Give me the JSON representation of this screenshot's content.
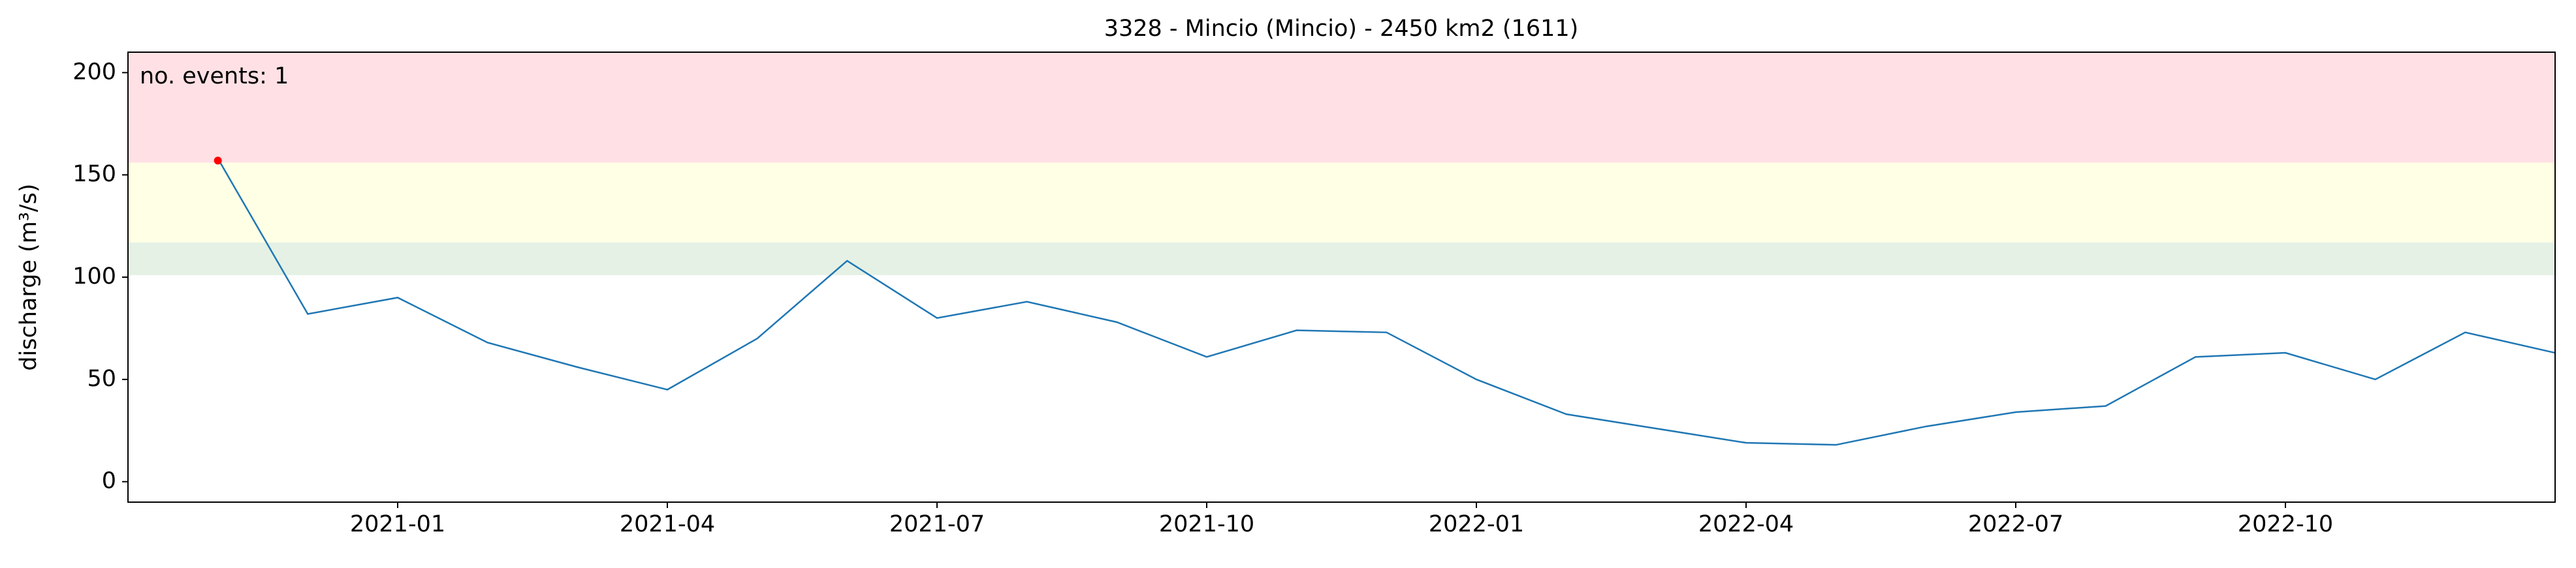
{
  "chart_data": {
    "type": "line",
    "title": "3328 - Mincio (Mincio) - 2450 km2 (1611)",
    "ylabel": "discharge (m³/s)",
    "annotation": "no. events: 1",
    "x": [
      "2020-11",
      "2020-12",
      "2021-01",
      "2021-02",
      "2021-03",
      "2021-04",
      "2021-05",
      "2021-06",
      "2021-07",
      "2021-08",
      "2021-09",
      "2021-10",
      "2021-11",
      "2021-12",
      "2022-01",
      "2022-02",
      "2022-03",
      "2022-04",
      "2022-05",
      "2022-06",
      "2022-07",
      "2022-08",
      "2022-09",
      "2022-10",
      "2022-11",
      "2022-12",
      "2023-01"
    ],
    "series": [
      {
        "color": "#1f77b4",
        "values": [
          158,
          82,
          90,
          68,
          56,
          45,
          70,
          108,
          80,
          88,
          78,
          61,
          74,
          73,
          50,
          33,
          26,
          19,
          18,
          27,
          34,
          37,
          61,
          63,
          50,
          73,
          63
        ]
      }
    ],
    "events": {
      "x": [
        "2020-11"
      ],
      "values": [
        157
      ],
      "color": "#ff0000"
    },
    "bands": [
      {
        "lower": 101,
        "upper": 117,
        "color": "#e5f1e5"
      },
      {
        "lower": 117,
        "upper": 156,
        "color": "#ffffe5"
      },
      {
        "lower": 156,
        "upper": 210,
        "color": "#ffe1e5"
      }
    ],
    "xlim": [
      "2020-10",
      "2023-01"
    ],
    "xticks": [
      "2021-01",
      "2021-04",
      "2021-07",
      "2021-10",
      "2022-01",
      "2022-04",
      "2022-07",
      "2022-10"
    ],
    "ylim": [
      -10,
      210
    ],
    "yticks": [
      0,
      50,
      100,
      150,
      200
    ],
    "grid": false
  }
}
